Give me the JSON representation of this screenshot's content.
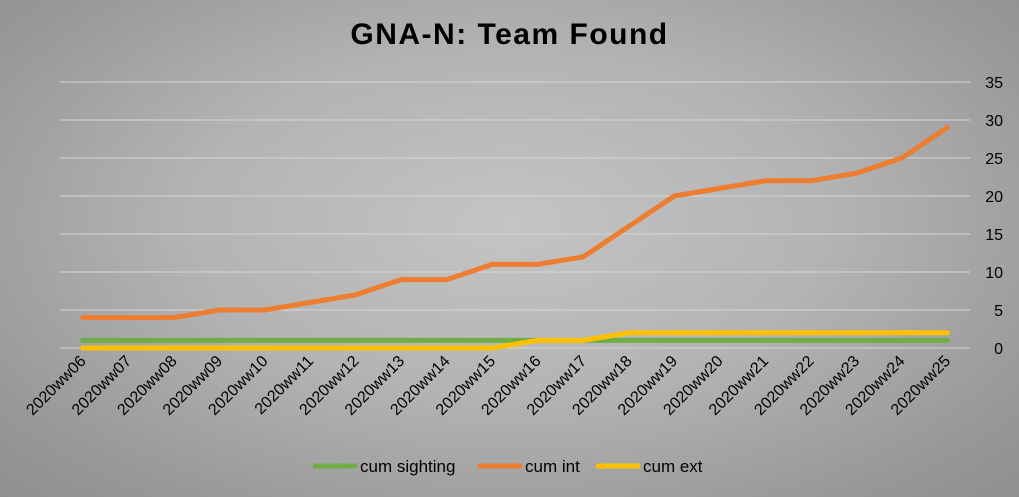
{
  "chart_data": {
    "type": "line",
    "title": "GNA-N: Team Found",
    "categories": [
      "2020ww06",
      "2020ww07",
      "2020ww08",
      "2020ww09",
      "2020ww10",
      "2020ww11",
      "2020ww12",
      "2020ww13",
      "2020ww14",
      "2020ww15",
      "2020ww16",
      "2020ww17",
      "2020ww18",
      "2020ww19",
      "2020ww20",
      "2020ww21",
      "2020ww22",
      "2020ww23",
      "2020ww24",
      "2020ww25"
    ],
    "series": [
      {
        "name": "cum sighting",
        "color": "#70ad47",
        "values": [
          1,
          1,
          1,
          1,
          1,
          1,
          1,
          1,
          1,
          1,
          1,
          1,
          1,
          1,
          1,
          1,
          1,
          1,
          1,
          1
        ]
      },
      {
        "name": "cum int",
        "color": "#ed7d31",
        "values": [
          4,
          4,
          4,
          5,
          5,
          6,
          7,
          9,
          9,
          11,
          11,
          12,
          16,
          20,
          21,
          22,
          22,
          23,
          25,
          29
        ]
      },
      {
        "name": "cum ext",
        "color": "#ffc000",
        "values": [
          0,
          0,
          0,
          0,
          0,
          0,
          0,
          0,
          0,
          0,
          1,
          1,
          2,
          2,
          2,
          2,
          2,
          2,
          2,
          2
        ]
      }
    ],
    "ylim": [
      0,
      35
    ],
    "yticks": [
      "0",
      "5",
      "10",
      "15",
      "20",
      "25",
      "30",
      "35"
    ],
    "y_axis_side": "right",
    "grid": true,
    "legend": "bottom"
  }
}
